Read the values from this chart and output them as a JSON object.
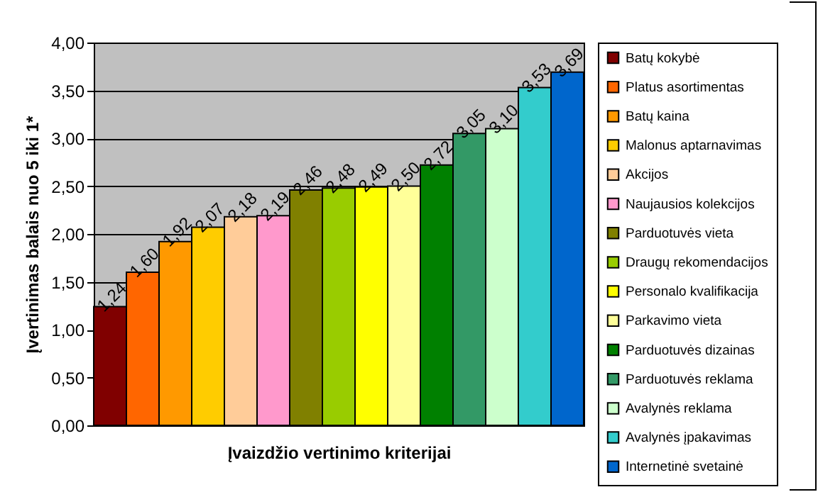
{
  "chart_data": {
    "type": "bar",
    "xlabel": "Įvaizdžio vertinimo kriterijai",
    "ylabel": "Įvertinimas balais nuo 5 iki 1*",
    "categories": [
      null
    ],
    "ylim": [
      0,
      4
    ],
    "yticks": [
      {
        "value": 0,
        "label": "0,00"
      },
      {
        "value": 0.5,
        "label": "0,50"
      },
      {
        "value": 1,
        "label": "1,00"
      },
      {
        "value": 1.5,
        "label": "1,50"
      },
      {
        "value": 2,
        "label": "2,00"
      },
      {
        "value": 2.5,
        "label": "2,50"
      },
      {
        "value": 3,
        "label": "3,00"
      },
      {
        "value": 3.5,
        "label": "3,50"
      },
      {
        "value": 4,
        "label": "4,00"
      }
    ],
    "grid": "y",
    "legend": "right",
    "tick_labels": "y",
    "series": [
      {
        "name": "Batų kokybė",
        "color": "#800000",
        "values": [
          1.24
        ],
        "value_labels": [
          "1,24"
        ]
      },
      {
        "name": "Platus asortimentas",
        "color": "#ff6600",
        "values": [
          1.6
        ],
        "value_labels": [
          "1,60"
        ]
      },
      {
        "name": "Batų kaina",
        "color": "#ff9900",
        "values": [
          1.92
        ],
        "value_labels": [
          "1,92"
        ]
      },
      {
        "name": "Malonus aptarnavimas",
        "color": "#ffcc00",
        "values": [
          2.07
        ],
        "value_labels": [
          "2,07"
        ]
      },
      {
        "name": "Akcijos",
        "color": "#ffcc99",
        "values": [
          2.18
        ],
        "value_labels": [
          "2,18"
        ]
      },
      {
        "name": "Naujausios kolekcijos",
        "color": "#ff99cc",
        "values": [
          2.19
        ],
        "value_labels": [
          "2,19"
        ]
      },
      {
        "name": "Parduotuvės vieta",
        "color": "#808000",
        "values": [
          2.46
        ],
        "value_labels": [
          "2,46"
        ]
      },
      {
        "name": "Draugų rekomendacijos",
        "color": "#99cc00",
        "values": [
          2.48
        ],
        "value_labels": [
          "2,48"
        ]
      },
      {
        "name": "Personalo kvalifikacija",
        "color": "#ffff00",
        "values": [
          2.49
        ],
        "value_labels": [
          "2,49"
        ]
      },
      {
        "name": "Parkavimo vieta",
        "color": "#ffff99",
        "values": [
          2.5
        ],
        "value_labels": [
          "2,50"
        ]
      },
      {
        "name": "Parduotuvės dizainas",
        "color": "#008000",
        "values": [
          2.72
        ],
        "value_labels": [
          "2,72"
        ]
      },
      {
        "name": "Parduotuvės reklama",
        "color": "#339966",
        "values": [
          3.05
        ],
        "value_labels": [
          "3,05"
        ]
      },
      {
        "name": "Avalynės reklama",
        "color": "#ccffcc",
        "values": [
          3.1
        ],
        "value_labels": [
          "3,10"
        ]
      },
      {
        "name": "Avalynės įpakavimas",
        "color": "#33cccc",
        "values": [
          3.53
        ],
        "value_labels": [
          "3,53"
        ]
      },
      {
        "name": "Internetinė svetainė",
        "color": "#0066cc",
        "values": [
          3.69
        ],
        "value_labels": [
          "3,69"
        ]
      }
    ]
  }
}
